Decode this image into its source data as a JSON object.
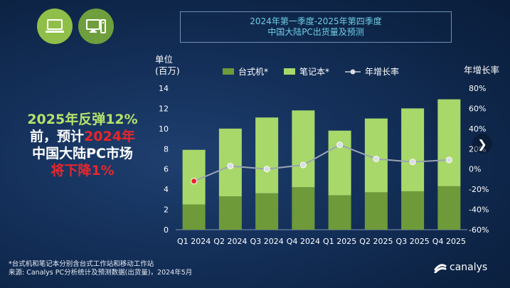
{
  "header": {
    "title_line1": "2024年第一季度-2025年第四季度",
    "title_line2": "中国大陆PC出货量及预测"
  },
  "icons": {
    "laptop": "laptop-icon",
    "desktop": "desktop-icon"
  },
  "callout": {
    "line1": "2025年反弹12%",
    "line2_prefix": "前，预计",
    "line2_red": "2024年",
    "line3": "中国大陆PC市场",
    "line4": "将下降1%"
  },
  "footnote": {
    "line1": "*台式机和笔记本分别含台式工作站和移动工作站",
    "line2": "来源: Canalys PC分析统计及预测数据(出货量)，2024年5月"
  },
  "logo": {
    "text": "canalys"
  },
  "colors": {
    "desktop": "#6e9a3a",
    "notebook": "#a8d86a",
    "growth_line": "#9aa4b2",
    "growth_marker": "#d9dde3",
    "highlight_marker": "#e8262b",
    "accent_red": "#e8262b",
    "accent_green": "#b5e26a"
  },
  "chart_data": {
    "type": "bar",
    "stacked": true,
    "unit_label_line1": "单位",
    "unit_label_line2": "(百万)",
    "right_axis_title": "年增长率",
    "categories": [
      "Q1 2024",
      "Q2 2024",
      "Q3 2024",
      "Q4 2024",
      "Q1 2025",
      "Q2 2025",
      "Q3 2025",
      "Q4 2025"
    ],
    "series": [
      {
        "name": "台式机*",
        "values": [
          2.5,
          3.3,
          3.6,
          4.2,
          3.4,
          3.7,
          3.8,
          4.3
        ]
      },
      {
        "name": "笔记本*",
        "values": [
          5.4,
          6.7,
          7.5,
          7.6,
          6.4,
          7.3,
          8.2,
          8.6
        ]
      }
    ],
    "line_series": {
      "name": "年增长率",
      "axis": "right",
      "values": [
        -12,
        3,
        0,
        4,
        24,
        10,
        7,
        9
      ],
      "highlight_index": 0
    },
    "ylim": [
      0,
      14
    ],
    "yticks": [
      0,
      2,
      4,
      6,
      8,
      10,
      12,
      14
    ],
    "y2lim": [
      -60,
      80
    ],
    "y2ticks": [
      "80%",
      "60%",
      "40%",
      "20%",
      "0%",
      "-20%",
      "-40%",
      "-60%"
    ],
    "legend_position": "top"
  }
}
